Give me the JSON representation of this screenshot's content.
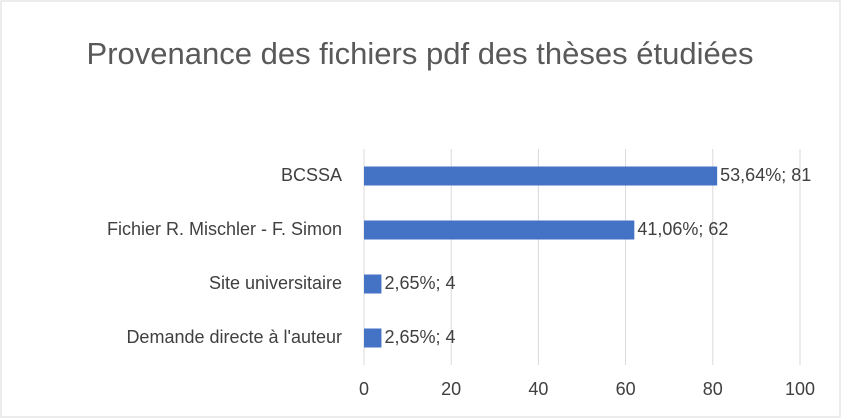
{
  "chart_data": {
    "type": "hbar",
    "title": "Provenance des fichiers pdf des thèses étudiées",
    "categories": [
      "BCSSA",
      "Fichier R. Mischler - F. Simon",
      "Site universitaire",
      "Demande directe à l'auteur"
    ],
    "values": [
      81,
      62,
      4,
      4
    ],
    "value_labels": [
      "53,64%; 81",
      "41,06%; 62",
      "2,65%; 4",
      "2,65%; 4"
    ],
    "color": "#4472c4",
    "xlim": [
      0,
      100
    ],
    "xticks": [
      0,
      20,
      40,
      60,
      80,
      100
    ],
    "grid": true
  }
}
